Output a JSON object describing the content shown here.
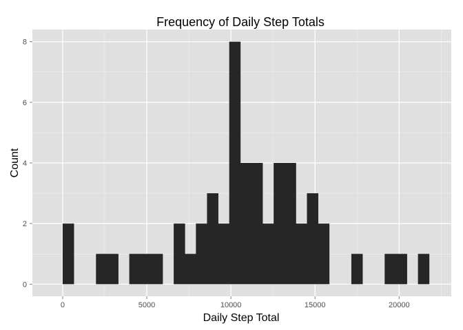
{
  "chart_data": {
    "type": "bar",
    "title": "Frequency of Daily Step Totals",
    "xlabel": "Daily Step Total",
    "ylabel": "Count",
    "xlim": [
      -1800,
      23100
    ],
    "ylim": [
      -0.4,
      8.4
    ],
    "xticks": [
      0,
      5000,
      10000,
      15000,
      20000
    ],
    "yticks": [
      0,
      2,
      4,
      6,
      8
    ],
    "grid": true,
    "background": "#e0e0e0",
    "grid_color": "#ffffff",
    "bar_color": "#262626",
    "bins": [
      {
        "x0": 0,
        "x1": 660,
        "count": 2
      },
      {
        "x0": 660,
        "x1": 1320,
        "count": 0
      },
      {
        "x0": 1320,
        "x1": 1980,
        "count": 0
      },
      {
        "x0": 1980,
        "x1": 2640,
        "count": 1
      },
      {
        "x0": 2640,
        "x1": 3300,
        "count": 1
      },
      {
        "x0": 3300,
        "x1": 3960,
        "count": 0
      },
      {
        "x0": 3960,
        "x1": 4620,
        "count": 1
      },
      {
        "x0": 4620,
        "x1": 5280,
        "count": 1
      },
      {
        "x0": 5280,
        "x1": 5940,
        "count": 1
      },
      {
        "x0": 5940,
        "x1": 6600,
        "count": 0
      },
      {
        "x0": 6600,
        "x1": 7260,
        "count": 2
      },
      {
        "x0": 7260,
        "x1": 7920,
        "count": 1
      },
      {
        "x0": 7920,
        "x1": 8580,
        "count": 2
      },
      {
        "x0": 8580,
        "x1": 9240,
        "count": 3
      },
      {
        "x0": 9240,
        "x1": 9900,
        "count": 2
      },
      {
        "x0": 9900,
        "x1": 10560,
        "count": 8
      },
      {
        "x0": 10560,
        "x1": 11220,
        "count": 4
      },
      {
        "x0": 11220,
        "x1": 11880,
        "count": 4
      },
      {
        "x0": 11880,
        "x1": 12540,
        "count": 2
      },
      {
        "x0": 12540,
        "x1": 13200,
        "count": 4
      },
      {
        "x0": 13200,
        "x1": 13860,
        "count": 4
      },
      {
        "x0": 13860,
        "x1": 14520,
        "count": 2
      },
      {
        "x0": 14520,
        "x1": 15180,
        "count": 3
      },
      {
        "x0": 15180,
        "x1": 15840,
        "count": 2
      },
      {
        "x0": 15840,
        "x1": 16500,
        "count": 0
      },
      {
        "x0": 16500,
        "x1": 17160,
        "count": 0
      },
      {
        "x0": 17160,
        "x1": 17820,
        "count": 1
      },
      {
        "x0": 17820,
        "x1": 18480,
        "count": 0
      },
      {
        "x0": 18480,
        "x1": 19140,
        "count": 0
      },
      {
        "x0": 19140,
        "x1": 19800,
        "count": 1
      },
      {
        "x0": 19800,
        "x1": 20460,
        "count": 1
      },
      {
        "x0": 20460,
        "x1": 21120,
        "count": 0
      },
      {
        "x0": 21120,
        "x1": 21780,
        "count": 1
      }
    ]
  }
}
